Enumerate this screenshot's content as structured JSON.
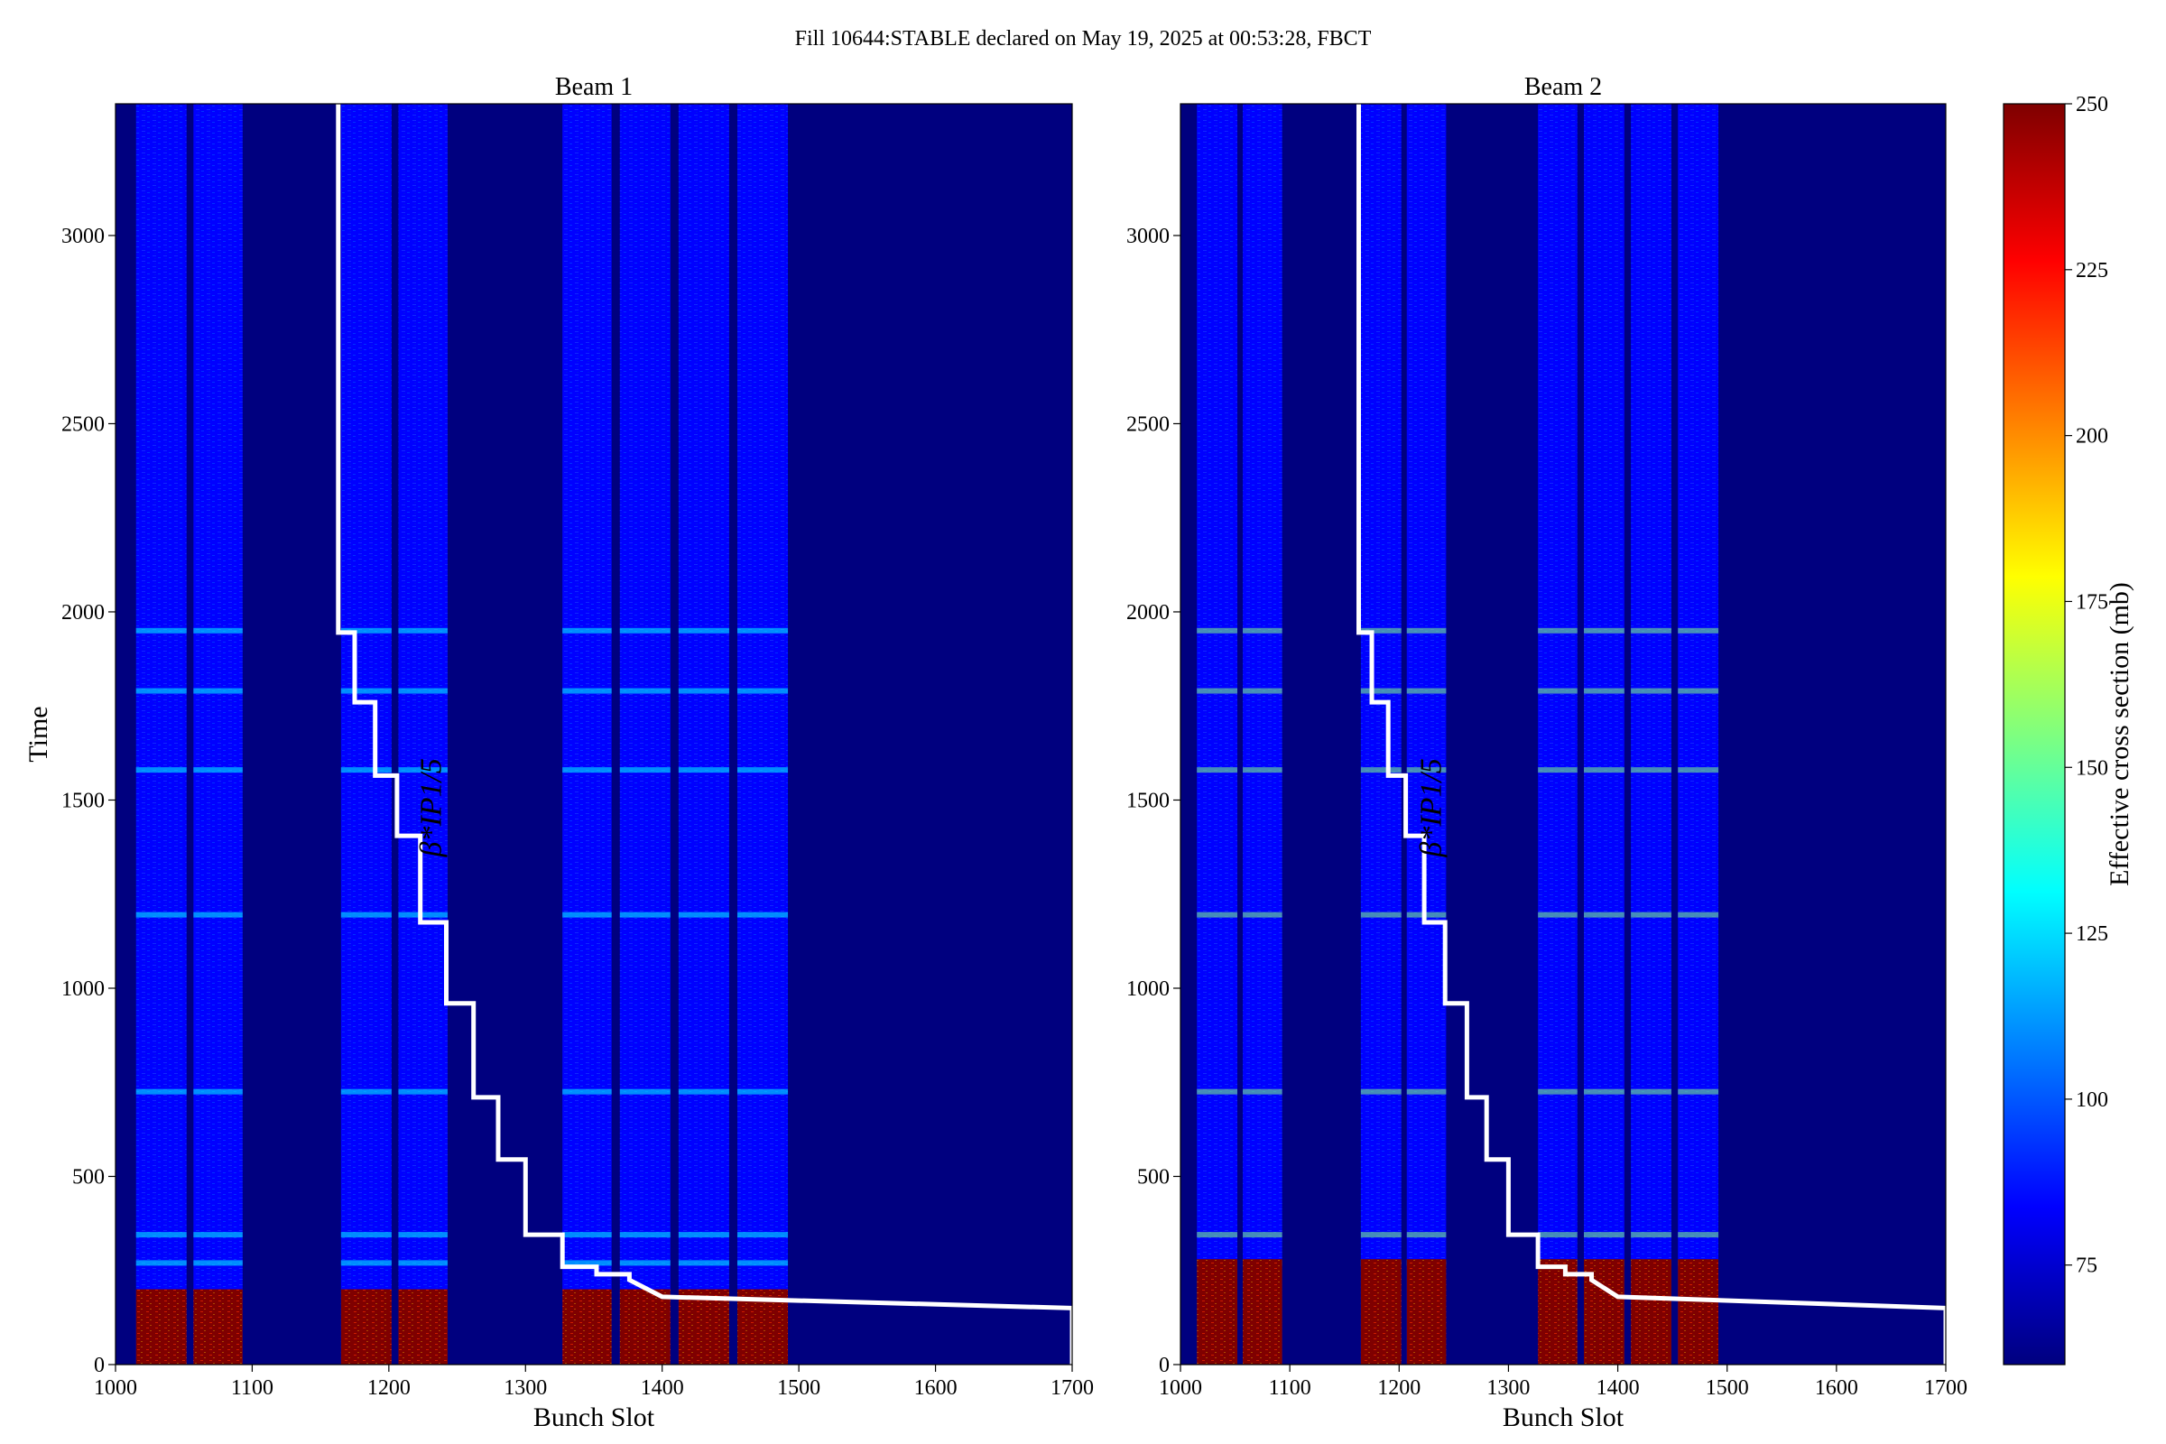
{
  "suptitle": "Fill 10644:STABLE declared on May 19, 2025 at 00:53:28, FBCT",
  "colors": {
    "background_cmap_low": "#00007f",
    "beta_line": "#ffffff",
    "colormap": [
      "#00007f",
      "#0000ff",
      "#007fff",
      "#00ffff",
      "#7fff7f",
      "#ffff00",
      "#ff7f00",
      "#ff0000",
      "#7f0000"
    ]
  },
  "chart_data": [
    {
      "type": "heatmap",
      "title": "Beam 1",
      "xlabel": "Bunch Slot",
      "ylabel": "Time",
      "xlim": [
        1000,
        1700
      ],
      "ylim": [
        0,
        3350
      ],
      "xticks": [
        1000,
        1100,
        1200,
        1300,
        1400,
        1500,
        1600,
        1700
      ],
      "yticks": [
        0,
        500,
        1000,
        1500,
        2000,
        2500,
        3000
      ],
      "trains": [
        [
          1015,
          1052
        ],
        [
          1057,
          1093
        ],
        [
          1165,
          1202
        ],
        [
          1207,
          1243
        ],
        [
          1327,
          1363
        ],
        [
          1369,
          1406
        ],
        [
          1412,
          1449
        ],
        [
          1455,
          1492
        ]
      ],
      "typical_value_mb": 95,
      "high_value_region": {
        "time": [
          0,
          200
        ],
        "value_mb": 250
      },
      "beta_annotation": "β*IP1/5",
      "beta_step_line": {
        "x": [
          1163,
          1163,
          1175,
          1175,
          1190,
          1190,
          1206,
          1206,
          1223,
          1223,
          1242,
          1242,
          1262,
          1262,
          1280,
          1280,
          1300,
          1300,
          1327,
          1327,
          1352,
          1352,
          1376,
          1376,
          1400,
          1700,
          1700
        ],
        "time": [
          3350,
          1945,
          1945,
          1760,
          1760,
          1565,
          1565,
          1405,
          1405,
          1175,
          1175,
          960,
          960,
          710,
          710,
          545,
          545,
          345,
          345,
          260,
          260,
          240,
          240,
          225,
          180,
          150,
          0
        ]
      }
    },
    {
      "type": "heatmap",
      "title": "Beam 2",
      "xlabel": "Bunch Slot",
      "xlim": [
        1000,
        1700
      ],
      "ylim": [
        0,
        3350
      ],
      "xticks": [
        1000,
        1100,
        1200,
        1300,
        1400,
        1500,
        1600,
        1700
      ],
      "yticks": [
        0,
        500,
        1000,
        1500,
        2000,
        2500,
        3000
      ],
      "trains": [
        [
          1015,
          1052
        ],
        [
          1057,
          1093
        ],
        [
          1165,
          1202
        ],
        [
          1207,
          1243
        ],
        [
          1327,
          1363
        ],
        [
          1369,
          1406
        ],
        [
          1412,
          1449
        ],
        [
          1455,
          1492
        ]
      ],
      "typical_value_mb": 95,
      "high_value_region": {
        "time": [
          0,
          280
        ],
        "value_mb": 250
      },
      "beta_annotation": "β*IP1/5",
      "beta_step_line": {
        "x": [
          1163,
          1163,
          1175,
          1175,
          1190,
          1190,
          1206,
          1206,
          1223,
          1223,
          1242,
          1242,
          1262,
          1262,
          1280,
          1280,
          1300,
          1300,
          1327,
          1327,
          1352,
          1352,
          1376,
          1376,
          1400,
          1700,
          1700
        ],
        "time": [
          3350,
          1945,
          1945,
          1760,
          1760,
          1565,
          1565,
          1405,
          1405,
          1175,
          1175,
          960,
          960,
          710,
          710,
          545,
          545,
          345,
          345,
          260,
          260,
          240,
          240,
          225,
          180,
          150,
          0
        ]
      }
    }
  ],
  "colorbar": {
    "label": "Effective cross section (mb)",
    "vmin": 60,
    "vmax": 250,
    "ticks": [
      75,
      100,
      125,
      150,
      175,
      200,
      225,
      250
    ]
  }
}
